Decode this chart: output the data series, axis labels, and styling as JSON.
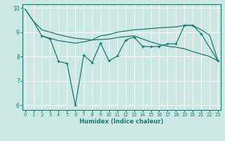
{
  "xlabel": "Humidex (Indice chaleur)",
  "x_all": [
    0,
    1,
    2,
    3,
    4,
    5,
    6,
    7,
    8,
    9,
    10,
    11,
    12,
    13,
    14,
    15,
    16,
    17,
    18,
    19,
    20,
    21,
    22,
    23
  ],
  "line_smooth_top": [
    9.95,
    9.45,
    9.1,
    9.0,
    8.9,
    8.82,
    8.75,
    8.72,
    8.68,
    8.7,
    8.72,
    8.78,
    8.82,
    8.85,
    8.72,
    8.6,
    8.5,
    8.42,
    8.38,
    8.32,
    8.2,
    8.1,
    8.0,
    7.82
  ],
  "line_smooth_mid": [
    9.95,
    9.45,
    8.85,
    8.75,
    8.65,
    8.6,
    8.55,
    8.6,
    8.68,
    8.85,
    8.9,
    9.0,
    9.05,
    9.1,
    9.12,
    9.15,
    9.18,
    9.2,
    9.22,
    9.28,
    9.28,
    9.1,
    8.88,
    7.82
  ],
  "line_jagged_x": [
    2,
    3,
    4,
    5,
    6,
    7,
    8,
    9,
    10,
    11,
    12,
    13,
    14,
    15,
    16,
    17,
    18,
    19,
    20,
    21,
    23
  ],
  "line_jagged_y": [
    8.85,
    8.72,
    7.8,
    7.72,
    6.0,
    8.05,
    7.75,
    8.55,
    7.82,
    8.02,
    8.68,
    8.8,
    8.42,
    8.4,
    8.42,
    8.52,
    8.52,
    9.28,
    9.28,
    8.93,
    7.82
  ],
  "ylim": [
    5.8,
    10.15
  ],
  "xlim": [
    -0.3,
    23.3
  ],
  "yticks": [
    6,
    7,
    8,
    9,
    10
  ],
  "xticks": [
    0,
    1,
    2,
    3,
    4,
    5,
    6,
    7,
    8,
    9,
    10,
    11,
    12,
    13,
    14,
    15,
    16,
    17,
    18,
    19,
    20,
    21,
    22,
    23
  ],
  "line_color": "#1a7a6e",
  "bg_color": "#cce8e4",
  "grid_color": "#ffffff"
}
